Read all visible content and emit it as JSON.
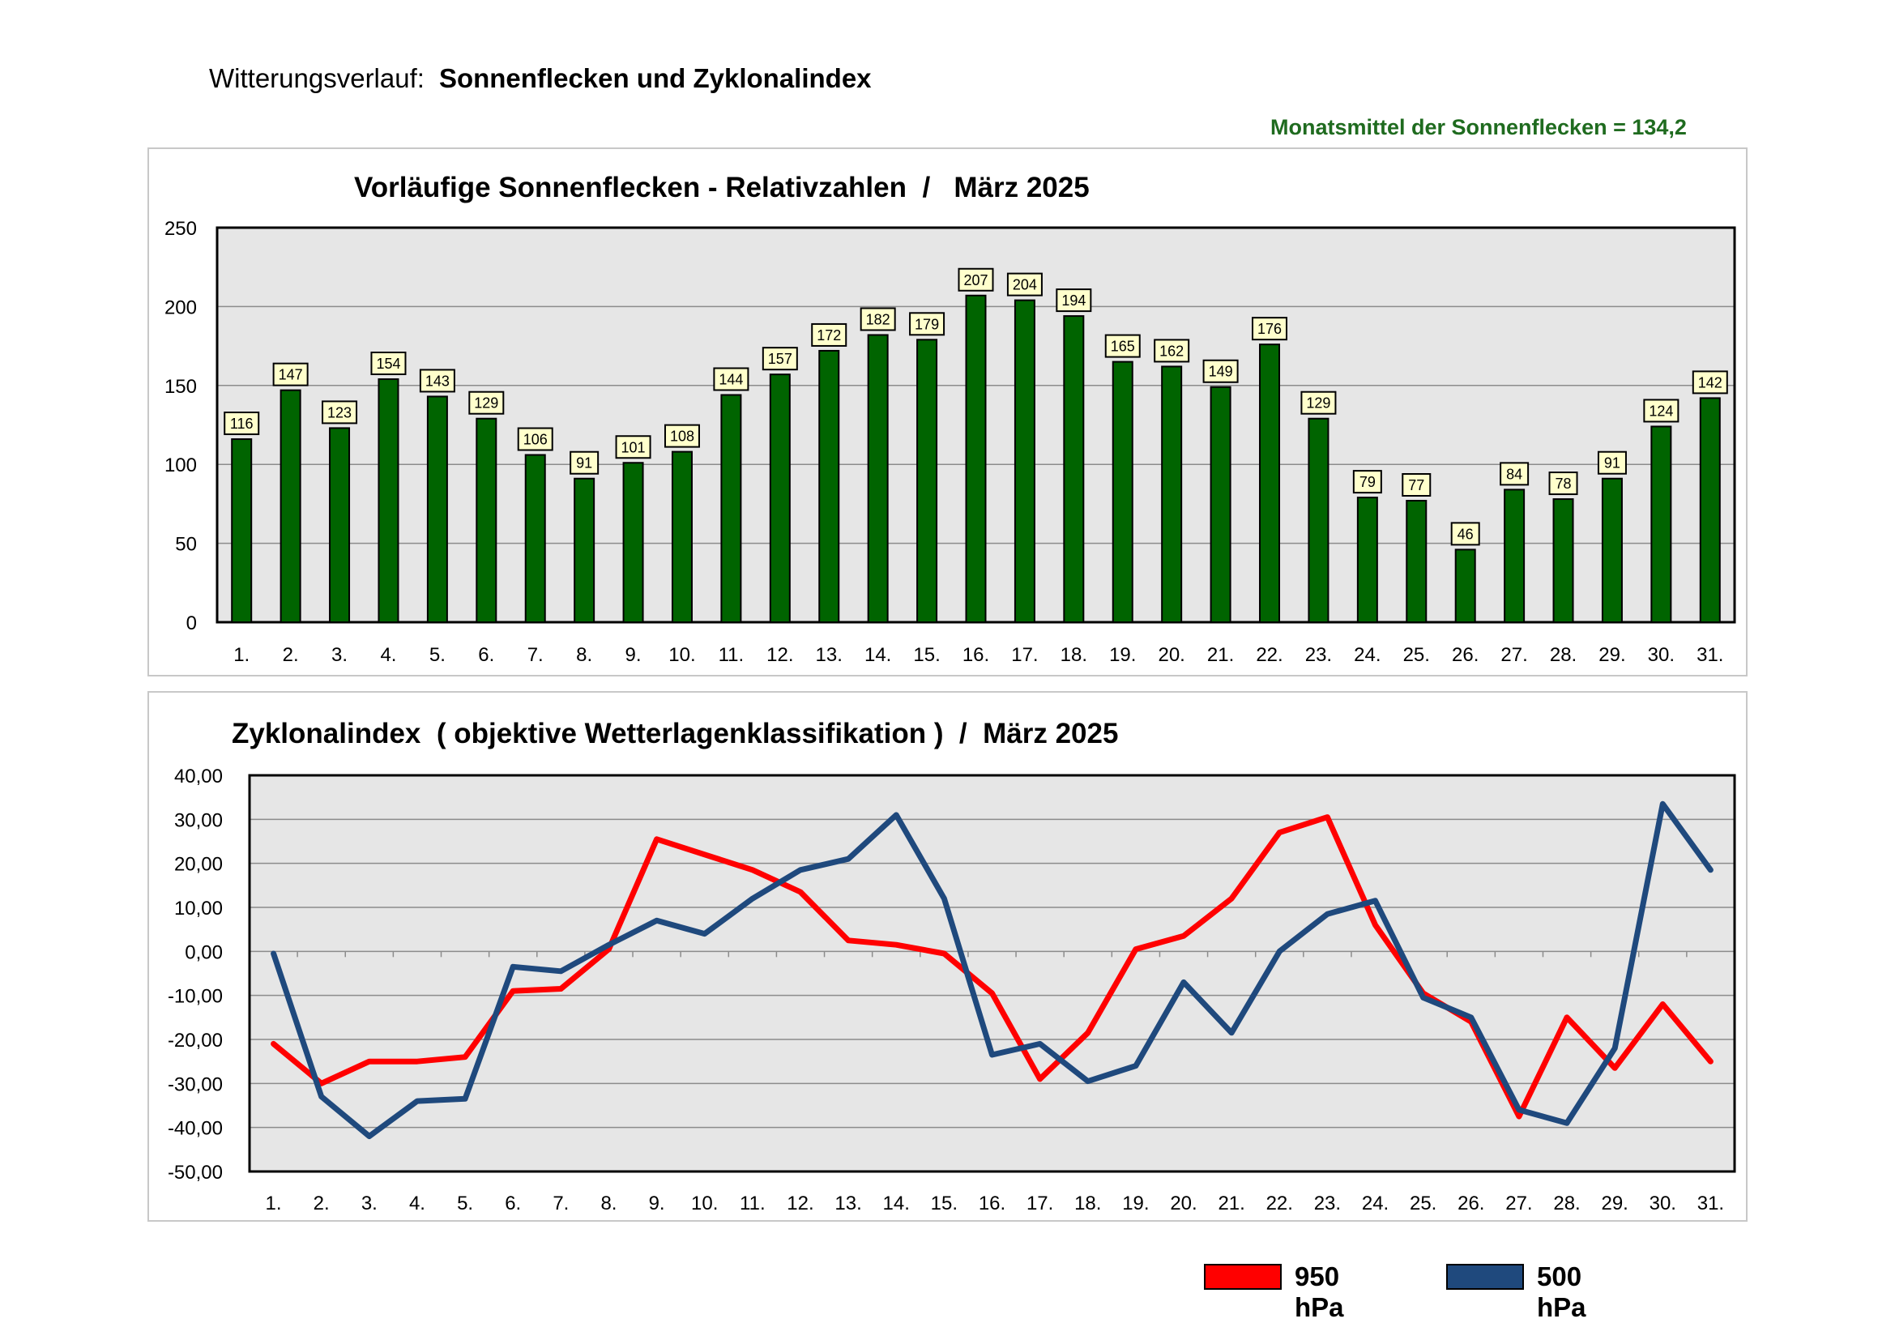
{
  "header": {
    "label": "Witterungsverlauf:",
    "title": "Sonnenflecken und Zyklonalindex",
    "monthly_mean": "Monatsmittel der Sonnenflecken = 134,2"
  },
  "colors": {
    "bar": "#006400",
    "plot_bg": "#e6e6e6",
    "line_950": "#ff0000",
    "line_500": "#1f497d",
    "mean_text": "#1f6b1f",
    "label_bg": "#ffffcc"
  },
  "chart_data": [
    {
      "type": "bar",
      "title": "Vorläufige Sonnenflecken - Relativzahlen  /   März 2025",
      "categories": [
        "1.",
        "2.",
        "3.",
        "4.",
        "5.",
        "6.",
        "7.",
        "8.",
        "9.",
        "10.",
        "11.",
        "12.",
        "13.",
        "14.",
        "15.",
        "16.",
        "17.",
        "18.",
        "19.",
        "20.",
        "21.",
        "22.",
        "23.",
        "24.",
        "25.",
        "26.",
        "27.",
        "28.",
        "29.",
        "30.",
        "31."
      ],
      "values": [
        116,
        147,
        123,
        154,
        143,
        129,
        106,
        91,
        101,
        108,
        144,
        157,
        172,
        182,
        179,
        207,
        204,
        194,
        165,
        162,
        149,
        176,
        129,
        79,
        77,
        46,
        84,
        78,
        91,
        124,
        142
      ],
      "ylim": [
        0,
        250
      ],
      "yticks": [
        "0",
        "50",
        "100",
        "150",
        "200",
        "250"
      ],
      "xlabel": "",
      "ylabel": "",
      "grid": true
    },
    {
      "type": "line",
      "title": "Zyklonalindex  ( objektive Wetterlagenklassifikation )  /  März 2025",
      "categories": [
        "1.",
        "2.",
        "3.",
        "4.",
        "5.",
        "6.",
        "7.",
        "8.",
        "9.",
        "10.",
        "11.",
        "12.",
        "13.",
        "14.",
        "15.",
        "16.",
        "17.",
        "18.",
        "19.",
        "20.",
        "21.",
        "22.",
        "23.",
        "24.",
        "25.",
        "26.",
        "27.",
        "28.",
        "29.",
        "30.",
        "31."
      ],
      "series": [
        {
          "name": "950 hPa",
          "values": [
            -21,
            -30,
            -25,
            -25,
            -24,
            -9,
            -8.5,
            0.5,
            25.5,
            22,
            18.5,
            13.5,
            2.5,
            1.5,
            -0.5,
            -9.5,
            -29,
            -18.5,
            0.5,
            3.5,
            12,
            27,
            30.5,
            6,
            -9.5,
            -16,
            -37.5,
            -15,
            -26.5,
            -12,
            -25
          ]
        },
        {
          "name": "500 hPa",
          "values": [
            -0.5,
            -33,
            -42,
            -34,
            -33.5,
            -3.5,
            -4.5,
            1.5,
            7,
            4,
            12,
            18.5,
            21,
            31,
            12,
            -23.5,
            -21,
            -29.5,
            -26,
            -7,
            -18.5,
            0,
            8.5,
            11.5,
            -10.5,
            -15,
            -36,
            -39,
            -22,
            33.5,
            18.5
          ]
        }
      ],
      "ylim": [
        -50,
        40
      ],
      "yticks": [
        "-50,00",
        "-40,00",
        "-30,00",
        "-20,00",
        "-10,00",
        "0,00",
        "10,00",
        "20,00",
        "30,00",
        "40,00"
      ],
      "xlabel": "",
      "ylabel": "",
      "grid": true
    }
  ],
  "legend": [
    {
      "label": "950 hPa",
      "color": "#ff0000"
    },
    {
      "label": "500 hPa",
      "color": "#1f497d"
    }
  ]
}
